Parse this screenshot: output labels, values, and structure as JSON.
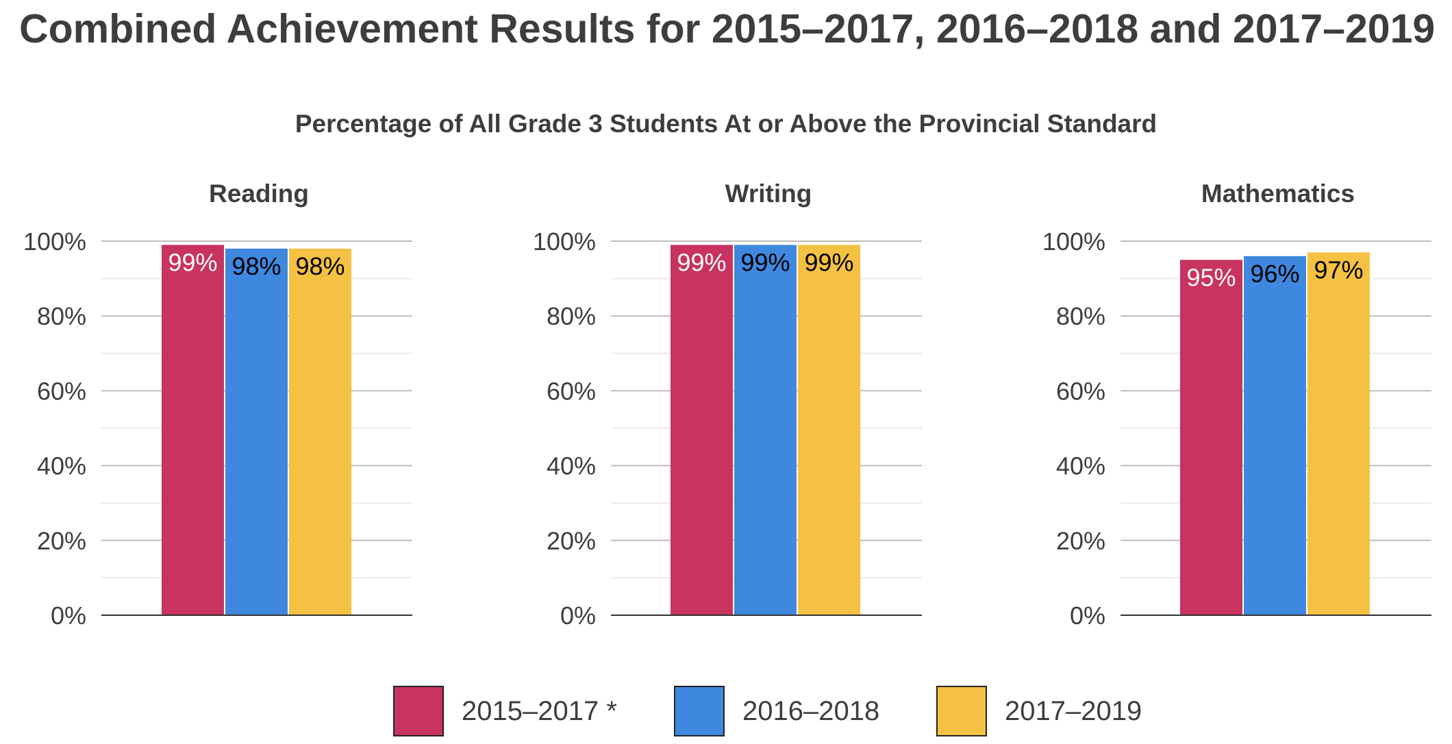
{
  "title": "Combined Achievement Results for 2015–2017, 2016–2018 and 2017–2019",
  "subtitle": "Percentage of All Grade 3 Students At or Above the Provincial Standard",
  "colors": {
    "series_1": "#c8335f",
    "series_2": "#3f88e0",
    "series_3": "#f4c142",
    "grid_major": "#bdbdbd",
    "grid_minor": "#ebebeb",
    "axis": "#333333",
    "text": "#3d3d3d"
  },
  "legend": [
    {
      "label": "2015–2017 *",
      "color": "#c8335f"
    },
    {
      "label": "2016–2018",
      "color": "#3f88e0"
    },
    {
      "label": "2017–2019",
      "color": "#f4c142"
    }
  ],
  "chart_data": [
    {
      "type": "bar",
      "title": "Reading",
      "categories": [
        ""
      ],
      "series": [
        {
          "name": "2015–2017 *",
          "values": [
            99
          ],
          "label": "99%",
          "label_color": "#ffffff"
        },
        {
          "name": "2016–2018",
          "values": [
            98
          ],
          "label": "98%",
          "label_color": "#000000"
        },
        {
          "name": "2017–2019",
          "values": [
            98
          ],
          "label": "98%",
          "label_color": "#000000"
        }
      ],
      "ylim": [
        0,
        100
      ],
      "yticks": [
        "0%",
        "20%",
        "40%",
        "60%",
        "80%",
        "100%"
      ],
      "grid": true,
      "legend": "bottom"
    },
    {
      "type": "bar",
      "title": "Writing",
      "categories": [
        ""
      ],
      "series": [
        {
          "name": "2015–2017 *",
          "values": [
            99
          ],
          "label": "99%",
          "label_color": "#ffffff"
        },
        {
          "name": "2016–2018",
          "values": [
            99
          ],
          "label": "99%",
          "label_color": "#000000"
        },
        {
          "name": "2017–2019",
          "values": [
            99
          ],
          "label": "99%",
          "label_color": "#000000"
        }
      ],
      "ylim": [
        0,
        100
      ],
      "yticks": [
        "0%",
        "20%",
        "40%",
        "60%",
        "80%",
        "100%"
      ],
      "grid": true,
      "legend": "bottom"
    },
    {
      "type": "bar",
      "title": "Mathematics",
      "categories": [
        ""
      ],
      "series": [
        {
          "name": "2015–2017 *",
          "values": [
            95
          ],
          "label": "95%",
          "label_color": "#ffffff"
        },
        {
          "name": "2016–2018",
          "values": [
            96
          ],
          "label": "96%",
          "label_color": "#000000"
        },
        {
          "name": "2017–2019",
          "values": [
            97
          ],
          "label": "97%",
          "label_color": "#000000"
        }
      ],
      "ylim": [
        0,
        100
      ],
      "yticks": [
        "0%",
        "20%",
        "40%",
        "60%",
        "80%",
        "100%"
      ],
      "grid": true,
      "legend": "bottom"
    }
  ]
}
